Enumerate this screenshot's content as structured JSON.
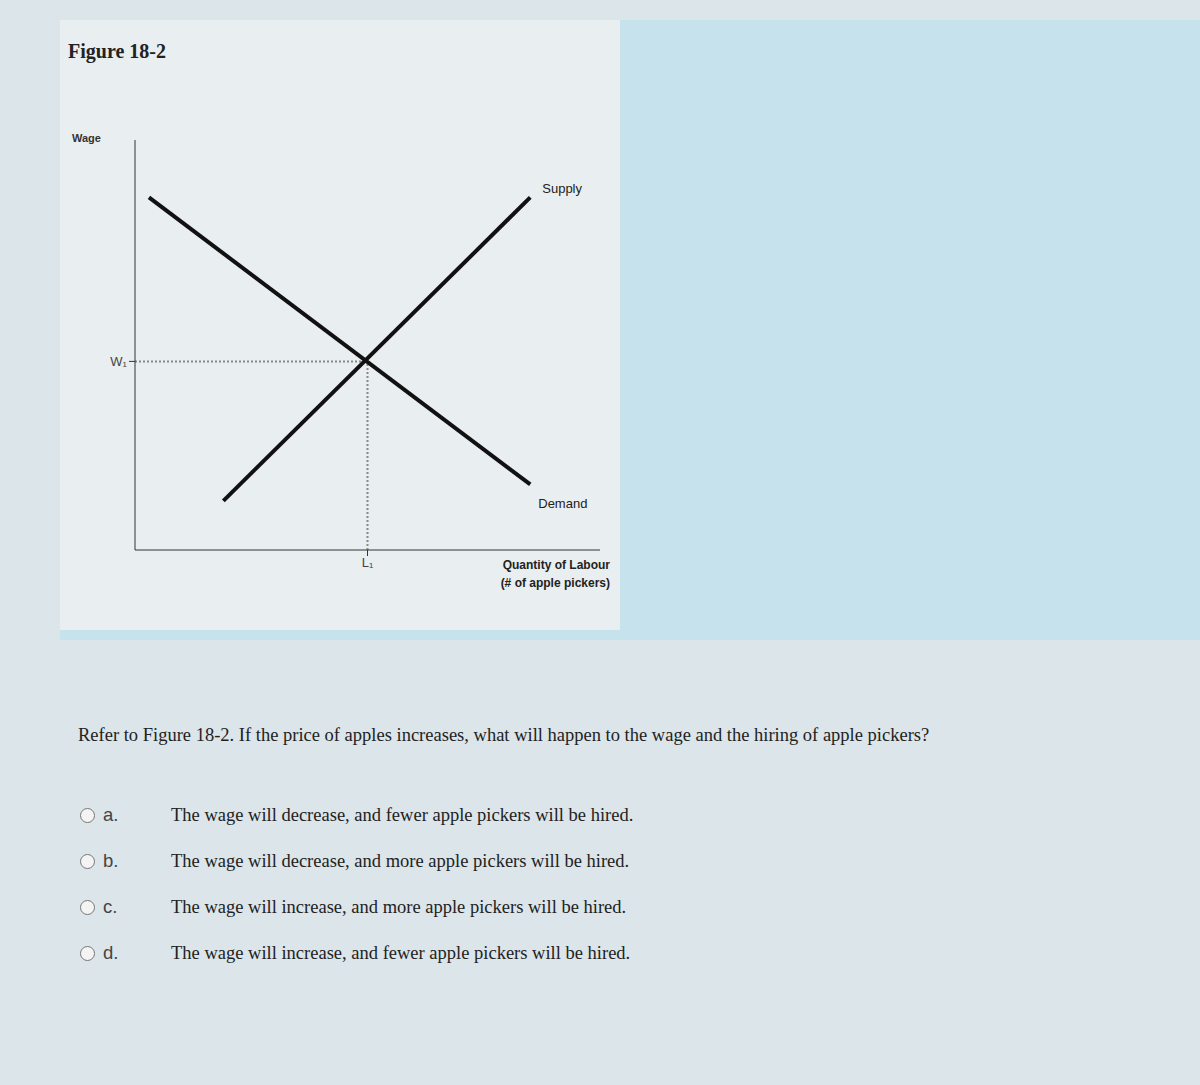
{
  "figure_title": "Figure 18-2",
  "chart_data": {
    "type": "line",
    "x_label": "Quantity of Labour (# of apple pickers)",
    "y_label": "Wage",
    "series": [
      {
        "name": "Supply",
        "color": "#111111",
        "x": [
          1.9,
          8.5
        ],
        "values": [
          1.2,
          8.6
        ]
      },
      {
        "name": "Demand",
        "color": "#111111",
        "x": [
          0.3,
          8.5
        ],
        "values": [
          8.6,
          1.6
        ]
      }
    ],
    "xlim": [
      0,
      10
    ],
    "ylim": [
      0,
      10
    ],
    "xticks": [
      {
        "value": 5.0,
        "label": "L₁"
      }
    ],
    "yticks": [
      {
        "value": 4.6,
        "label": "W₁"
      }
    ],
    "grid": false
  },
  "question": "Refer to Figure 18-2. If the price of apples increases, what will happen to the wage and the hiring of apple pickers?",
  "options": [
    {
      "letter": "a.",
      "text": "The wage will decrease, and fewer apple pickers will be hired."
    },
    {
      "letter": "b.",
      "text": "The wage will decrease, and more apple pickers will be hired."
    },
    {
      "letter": "c.",
      "text": "The wage will increase, and more apple pickers will be hired."
    },
    {
      "letter": "d.",
      "text": "The wage will increase, and fewer apple pickers will be hired."
    }
  ]
}
